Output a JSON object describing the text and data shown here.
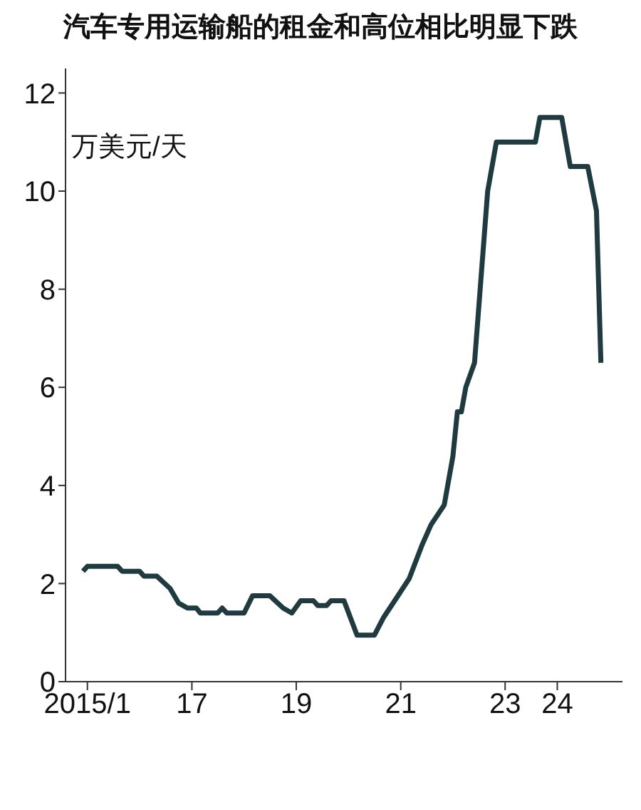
{
  "chart_data": {
    "type": "line",
    "title": "汽车专用运输船的租金和高位相比明显下跌",
    "ylabel": "万美元/天",
    "x": [
      "2014-12",
      "2015-01",
      "2015-08",
      "2015-09",
      "2016-01",
      "2016-02",
      "2016-05",
      "2016-08",
      "2016-10",
      "2016-12",
      "2017-02",
      "2017-03",
      "2017-07",
      "2017-08",
      "2017-09",
      "2018-01",
      "2018-03",
      "2018-07",
      "2018-10",
      "2018-12",
      "2019-02",
      "2019-05",
      "2019-06",
      "2019-08",
      "2019-09",
      "2019-12",
      "2020-03",
      "2020-07",
      "2020-09",
      "2020-12",
      "2021-03",
      "2021-06",
      "2021-08",
      "2021-11",
      "2022-01",
      "2022-02",
      "2022-03",
      "2022-04",
      "2022-06",
      "2022-09",
      "2022-11",
      "2023-08",
      "2023-09",
      "2024-02",
      "2024-04",
      "2024-08",
      "2024-10",
      "2024-11"
    ],
    "series": [
      {
        "color": "#1f3b3f",
        "values": [
          2.25,
          2.35,
          2.35,
          2.25,
          2.25,
          2.15,
          2.15,
          1.9,
          1.6,
          1.5,
          1.5,
          1.4,
          1.4,
          1.5,
          1.4,
          1.4,
          1.75,
          1.75,
          1.5,
          1.4,
          1.65,
          1.65,
          1.55,
          1.55,
          1.65,
          1.65,
          0.95,
          0.95,
          1.3,
          1.7,
          2.1,
          2.8,
          3.2,
          3.6,
          4.6,
          5.5,
          5.5,
          6.0,
          6.5,
          10.0,
          11.0,
          11.0,
          11.5,
          11.5,
          10.5,
          10.5,
          9.6,
          6.5
        ]
      }
    ],
    "xlim": [
      "2014-08",
      "2025-04"
    ],
    "xticks": [
      {
        "value": "2015-01",
        "label": "2015/1"
      },
      {
        "value": "2017-01",
        "label": "17"
      },
      {
        "value": "2019-01",
        "label": "19"
      },
      {
        "value": "2021-01",
        "label": "21"
      },
      {
        "value": "2023-01",
        "label": "23"
      },
      {
        "value": "2024-01",
        "label": "24"
      }
    ],
    "ylim": [
      0,
      12.5
    ],
    "yticks": [
      0,
      2,
      4,
      6,
      8,
      10,
      12
    ],
    "grid": false,
    "legend": false,
    "marker": "none",
    "line_style": "solid"
  }
}
